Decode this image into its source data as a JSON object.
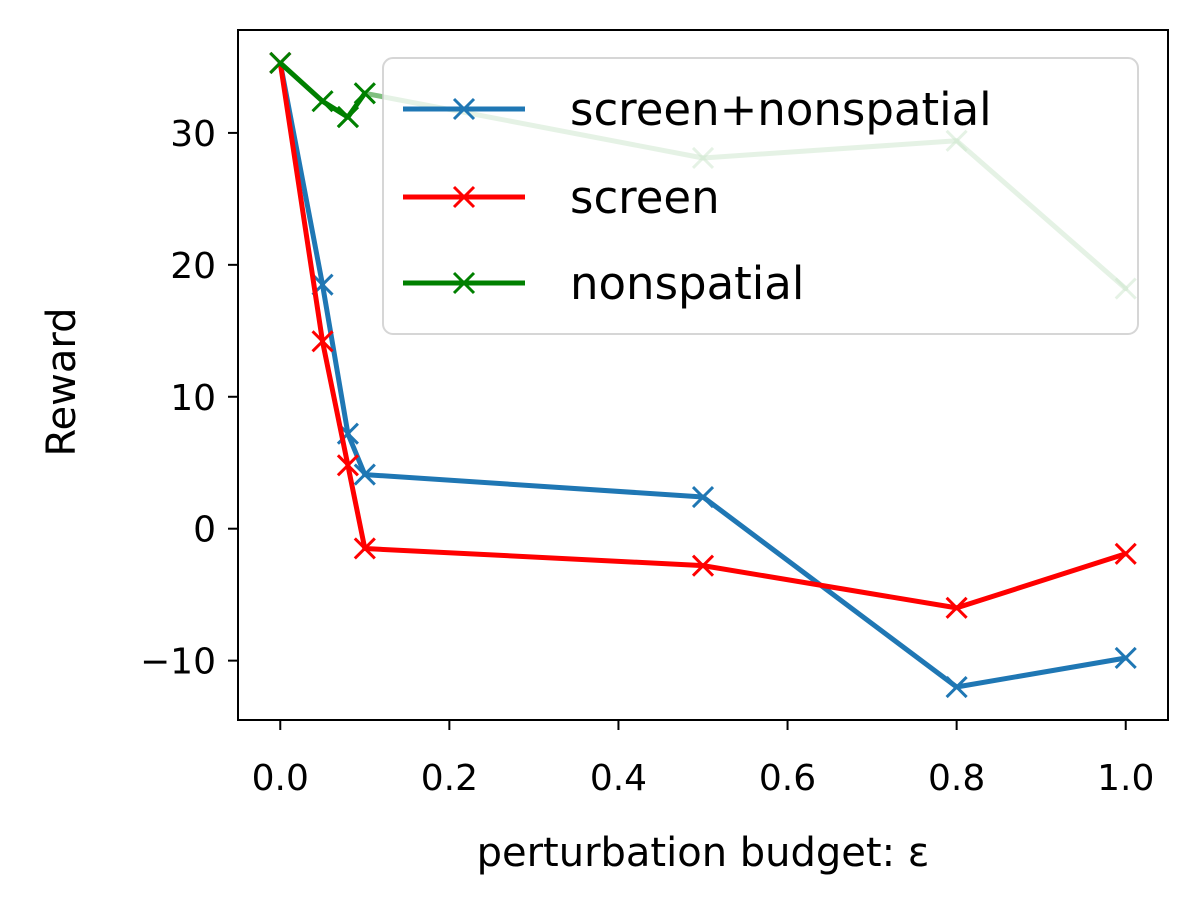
{
  "chart_data": {
    "type": "line",
    "title": "",
    "xlabel": "perturbation budget: ε",
    "ylabel": "Reward",
    "xlim": [
      -0.05,
      1.05
    ],
    "ylim": [
      -14.5,
      37.8
    ],
    "xticks": [
      0.0,
      0.2,
      0.4,
      0.6,
      0.8,
      1.0
    ],
    "xtick_labels": [
      "0.0",
      "0.2",
      "0.4",
      "0.6",
      "0.8",
      "1.0"
    ],
    "yticks": [
      -10,
      0,
      10,
      20,
      30
    ],
    "ytick_labels": [
      "−10",
      "0",
      "10",
      "20",
      "30"
    ],
    "legend_position": "top-right",
    "series": [
      {
        "name": "screen+nonspatial",
        "color": "#1f77b4",
        "marker": "x",
        "x": [
          0.0,
          0.05,
          0.08,
          0.1,
          0.5,
          0.8,
          1.0
        ],
        "y": [
          35.3,
          18.5,
          7.2,
          4.1,
          2.4,
          -12.0,
          -9.8
        ]
      },
      {
        "name": "screen",
        "color": "#ff0000",
        "marker": "x",
        "x": [
          0.0,
          0.05,
          0.08,
          0.1,
          0.5,
          0.8,
          1.0
        ],
        "y": [
          35.3,
          14.2,
          4.8,
          -1.5,
          -2.8,
          -6.0,
          -1.9
        ]
      },
      {
        "name": "nonspatial",
        "color": "#008000",
        "marker": "x",
        "segments": [
          {
            "opacity": 1.0,
            "x": [
              0.0,
              0.05,
              0.08
            ],
            "y": [
              35.3,
              32.4,
              31.2
            ]
          },
          {
            "opacity": 1.0,
            "x": [
              0.08,
              0.1
            ],
            "y": [
              31.2,
              33.0
            ]
          },
          {
            "opacity": 0.5,
            "x": [
              0.1,
              0.5,
              0.8,
              1.0
            ],
            "y": [
              33.0,
              28.1,
              29.4,
              18.2
            ]
          }
        ],
        "x": [
          0.0,
          0.05,
          0.08,
          0.1,
          0.5,
          0.8,
          1.0
        ],
        "y": [
          35.3,
          32.4,
          31.2,
          33.0,
          28.1,
          29.4,
          18.2
        ]
      }
    ]
  }
}
